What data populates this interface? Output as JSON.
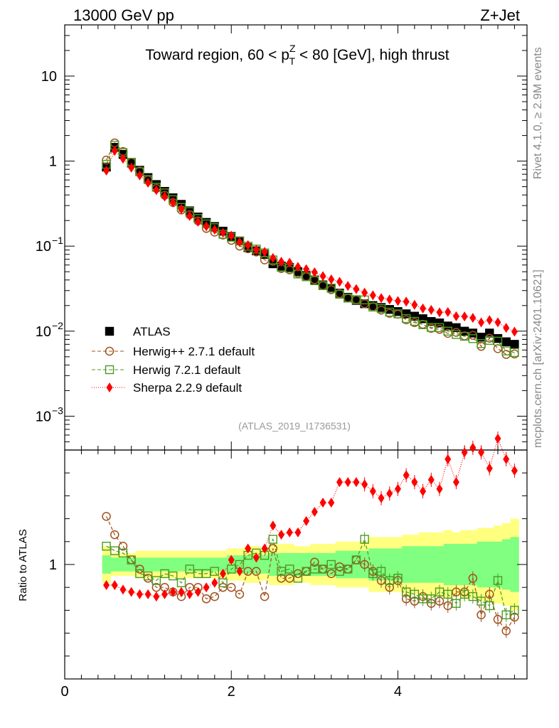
{
  "header": {
    "left": "13000 GeV pp",
    "right": "Z+Jet"
  },
  "side_labels": {
    "top": "Rivet 4.1.0, ≥ 2.9M events",
    "bottom": "mcplots.cern.ch [arXiv:2401.10621]"
  },
  "colors": {
    "atlas": "#000000",
    "herwigpp": "#a0521e",
    "herwig7": "#4c9a22",
    "sherpa": "#ff0000",
    "band_yellow": "#ffff80",
    "band_green": "#80ff80"
  },
  "chart_data": {
    "type": "scatter",
    "title": "Toward region, 60 < p_T^Z < 80 [GeV], high thrust",
    "title_parts": {
      "pre": "Toward region, 60 < p",
      "sup": "Z",
      "sub": "T",
      "post": " < 80 [GeV], high thrust"
    },
    "analysis": "(ATLAS_2019_I1736531)",
    "xlim": [
      0,
      5.55
    ],
    "xticks": [
      "0",
      "2",
      "4"
    ],
    "main": {
      "ylim": [
        0.0004,
        40
      ],
      "yscale": "log",
      "yticks": [
        {
          "base": "10",
          "exp": "",
          "v": 10
        },
        {
          "base": "1",
          "exp": "",
          "v": 1
        },
        {
          "base": "10",
          "exp": "−1",
          "v": 0.1
        },
        {
          "base": "10",
          "exp": "−2",
          "v": 0.01
        },
        {
          "base": "10",
          "exp": "−3",
          "v": 0.001
        }
      ]
    },
    "ratio": {
      "ylabel": "Ratio to ATLAS",
      "ylim": [
        0.5,
        1.5
      ],
      "ytick_label": "1"
    },
    "legend": [
      "ATLAS",
      "Herwig++ 2.7.1 default",
      "Herwig 7.2.1 default",
      "Sherpa 2.2.9 default"
    ],
    "x": [
      0.5,
      0.6,
      0.7,
      0.8,
      0.9,
      1.0,
      1.1,
      1.2,
      1.3,
      1.4,
      1.5,
      1.6,
      1.7,
      1.8,
      1.9,
      2.0,
      2.1,
      2.2,
      2.3,
      2.4,
      2.5,
      2.6,
      2.7,
      2.8,
      2.9,
      3.0,
      3.1,
      3.2,
      3.3,
      3.4,
      3.5,
      3.6,
      3.7,
      3.8,
      3.9,
      4.0,
      4.1,
      4.2,
      4.3,
      4.4,
      4.5,
      4.6,
      4.7,
      4.8,
      4.9,
      5.0,
      5.1,
      5.2,
      5.3,
      5.4
    ],
    "series": [
      {
        "name": "ATLAS",
        "values": [
          0.85,
          1.45,
          1.2,
          0.95,
          0.78,
          0.64,
          0.53,
          0.44,
          0.37,
          0.31,
          0.26,
          0.22,
          0.19,
          0.17,
          0.15,
          0.13,
          0.115,
          0.096,
          0.088,
          0.08,
          0.062,
          0.058,
          0.056,
          0.05,
          0.045,
          0.04,
          0.035,
          0.032,
          0.028,
          0.025,
          0.023,
          0.021,
          0.02,
          0.019,
          0.018,
          0.017,
          0.016,
          0.015,
          0.014,
          0.013,
          0.0125,
          0.0115,
          0.011,
          0.01,
          0.0095,
          0.0085,
          0.0095,
          0.0082,
          0.0075,
          0.007
        ]
      },
      {
        "name": "Herwig++ 2.7.1 default",
        "ratio": [
          1.21,
          1.13,
          1.08,
          1.02,
          0.98,
          0.94,
          0.9,
          0.9,
          0.88,
          0.86,
          0.9,
          0.9,
          0.85,
          0.86,
          0.9,
          0.9,
          0.87,
          0.97,
          0.97,
          0.86,
          1.07,
          0.94,
          0.94,
          0.96,
          0.97,
          1.01,
          0.98,
          0.96,
          0.99,
          0.98,
          1.02,
          1.0,
          0.97,
          0.93,
          0.9,
          0.93,
          0.85,
          0.84,
          0.86,
          0.83,
          0.84,
          0.82,
          0.88,
          0.88,
          0.94,
          0.78,
          0.87,
          0.76,
          0.71,
          0.77
        ]
      },
      {
        "name": "Herwig 7.2.1 default",
        "ratio": [
          1.08,
          1.06,
          1.05,
          1.02,
          0.96,
          0.95,
          0.93,
          0.96,
          0.95,
          0.92,
          0.98,
          0.96,
          0.96,
          0.97,
          0.92,
          0.98,
          1.0,
          1.04,
          1.05,
          1.04,
          1.11,
          0.97,
          0.98,
          0.94,
          0.97,
          0.98,
          0.98,
          1.0,
          0.97,
          0.98,
          1.02,
          1.11,
          0.96,
          0.97,
          0.93,
          0.94,
          0.88,
          0.87,
          0.85,
          0.85,
          0.88,
          0.87,
          0.83,
          0.87,
          0.86,
          0.84,
          0.82,
          0.93,
          0.78,
          0.8
        ]
      },
      {
        "name": "Sherpa 2.2.9 default",
        "ratio": [
          0.91,
          0.91,
          0.89,
          0.88,
          0.87,
          0.87,
          0.86,
          0.87,
          0.88,
          0.88,
          0.87,
          0.88,
          0.9,
          0.92,
          0.96,
          1.02,
          0.97,
          1.07,
          1.03,
          1.07,
          1.17,
          1.13,
          1.14,
          1.14,
          1.19,
          1.23,
          1.27,
          1.27,
          1.36,
          1.36,
          1.36,
          1.35,
          1.32,
          1.29,
          1.31,
          1.33,
          1.39,
          1.36,
          1.32,
          1.37,
          1.33,
          1.46,
          1.36,
          1.49,
          1.51,
          1.49,
          1.42,
          1.55,
          1.46,
          1.41
        ]
      },
      {
        "name": "yellow band",
        "ratio_halfwidth": [
          0.08,
          0.05,
          0.05,
          0.05,
          0.06,
          0.06,
          0.06,
          0.06,
          0.06,
          0.06,
          0.06,
          0.06,
          0.06,
          0.06,
          0.06,
          0.07,
          0.07,
          0.08,
          0.08,
          0.07,
          0.09,
          0.09,
          0.09,
          0.08,
          0.08,
          0.09,
          0.09,
          0.09,
          0.1,
          0.1,
          0.1,
          0.1,
          0.12,
          0.12,
          0.12,
          0.12,
          0.13,
          0.13,
          0.14,
          0.14,
          0.14,
          0.15,
          0.14,
          0.15,
          0.15,
          0.16,
          0.16,
          0.17,
          0.18,
          0.2
        ]
      },
      {
        "name": "green band",
        "ratio_halfwidth": [
          0.04,
          0.03,
          0.03,
          0.03,
          0.03,
          0.03,
          0.03,
          0.03,
          0.03,
          0.03,
          0.03,
          0.03,
          0.03,
          0.03,
          0.03,
          0.04,
          0.04,
          0.04,
          0.04,
          0.04,
          0.05,
          0.05,
          0.05,
          0.05,
          0.05,
          0.05,
          0.05,
          0.05,
          0.06,
          0.06,
          0.06,
          0.06,
          0.07,
          0.07,
          0.07,
          0.07,
          0.08,
          0.08,
          0.08,
          0.08,
          0.08,
          0.09,
          0.09,
          0.09,
          0.09,
          0.1,
          0.1,
          0.1,
          0.11,
          0.12
        ]
      }
    ]
  }
}
